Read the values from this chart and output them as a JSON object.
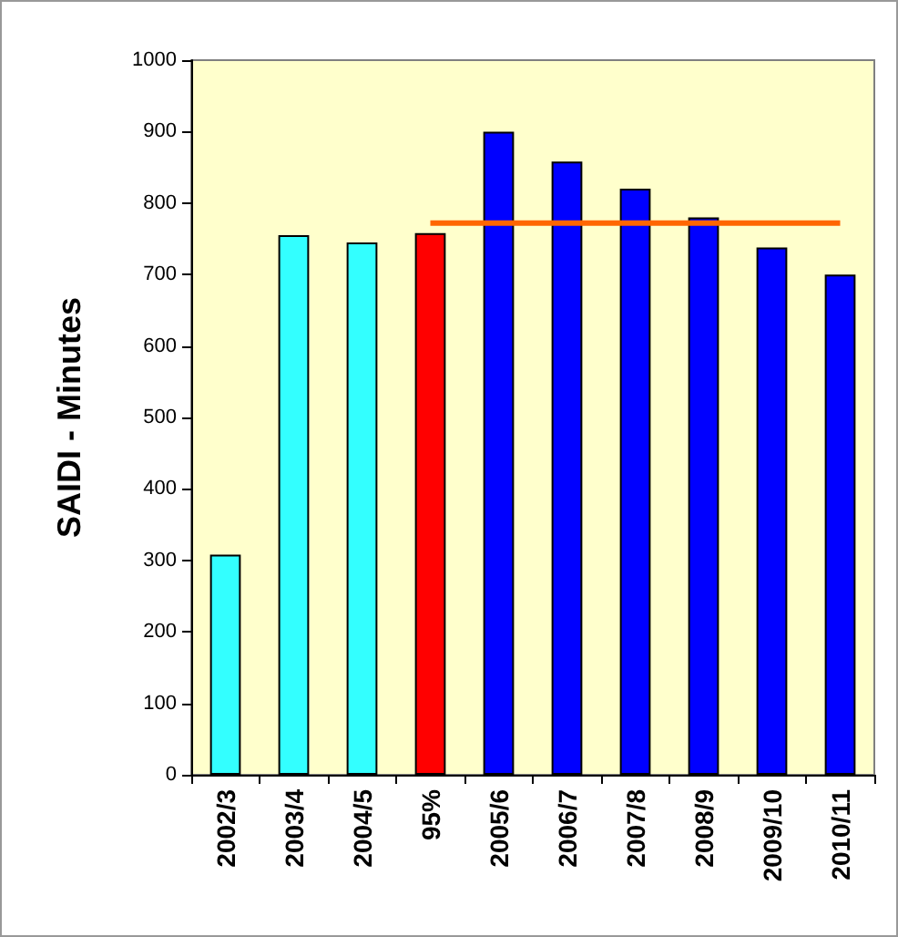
{
  "chart_data": {
    "type": "bar",
    "ylabel": "SAIDI - Minutes",
    "categories": [
      "2002/3",
      "2003/4",
      "2004/5",
      "95%",
      "2005/6",
      "2006/7",
      "2007/8",
      "2008/9",
      "2009/10",
      "2010/11"
    ],
    "series": [
      {
        "values": [
          308,
          755,
          745,
          758,
          900,
          858,
          820,
          780,
          738,
          700
        ],
        "colors": [
          "#33ffff",
          "#33ffff",
          "#33ffff",
          "#ff0000",
          "#0000ff",
          "#0000ff",
          "#0000ff",
          "#0000ff",
          "#0000ff",
          "#0000ff"
        ]
      },
      {
        "type": "line",
        "color": "#ff6600",
        "values": [
          null,
          null,
          null,
          772,
          772,
          772,
          772,
          772,
          772,
          772
        ]
      }
    ],
    "ylim": [
      0,
      1000
    ],
    "yticks": [
      0,
      100,
      200,
      300,
      400,
      500,
      600,
      700,
      800,
      900,
      1000
    ],
    "grid": false,
    "marker": "none"
  }
}
